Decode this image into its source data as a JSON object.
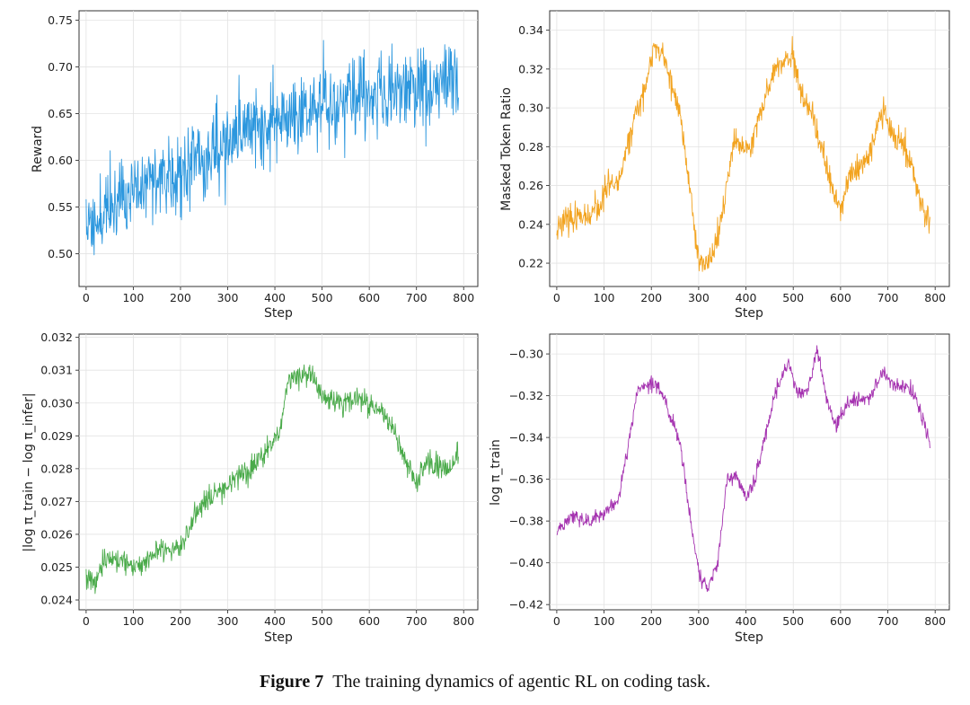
{
  "caption": {
    "label": "Figure 7",
    "text": "The training dynamics of agentic RL on coding task."
  },
  "chart_data": [
    {
      "type": "line",
      "color": "#2c97de",
      "xlabel": "Step",
      "ylabel": "Reward",
      "xlim": [
        -15,
        830
      ],
      "ylim": [
        0.465,
        0.76
      ],
      "xticks": [
        0,
        100,
        200,
        300,
        400,
        500,
        600,
        700,
        800
      ],
      "yticks": [
        0.5,
        0.55,
        0.6,
        0.65,
        0.7,
        0.75
      ],
      "ytick_labels": [
        "0.50",
        "0.55",
        "0.60",
        "0.65",
        "0.70",
        "0.75"
      ],
      "grid": true,
      "trend": [
        [
          0,
          0.53
        ],
        [
          50,
          0.55
        ],
        [
          100,
          0.565
        ],
        [
          150,
          0.58
        ],
        [
          200,
          0.59
        ],
        [
          250,
          0.605
        ],
        [
          300,
          0.62
        ],
        [
          350,
          0.635
        ],
        [
          400,
          0.645
        ],
        [
          450,
          0.655
        ],
        [
          500,
          0.66
        ],
        [
          550,
          0.665
        ],
        [
          600,
          0.67
        ],
        [
          650,
          0.675
        ],
        [
          700,
          0.68
        ],
        [
          750,
          0.685
        ],
        [
          790,
          0.69
        ]
      ],
      "n_points": 790,
      "noise": 0.022,
      "walk": 0,
      "smooth": 0,
      "min": 0.474,
      "max": 0.753,
      "seed": 11
    },
    {
      "type": "line",
      "color": "#f2a31f",
      "xlabel": "Step",
      "ylabel": "Masked Token Ratio",
      "xlim": [
        -15,
        830
      ],
      "ylim": [
        0.208,
        0.35
      ],
      "xticks": [
        0,
        100,
        200,
        300,
        400,
        500,
        600,
        700,
        800
      ],
      "yticks": [
        0.22,
        0.24,
        0.26,
        0.28,
        0.3,
        0.32,
        0.34
      ],
      "ytick_labels": [
        "0.22",
        "0.24",
        "0.26",
        "0.28",
        "0.30",
        "0.32",
        "0.34"
      ],
      "grid": true,
      "trend": [
        [
          0,
          0.238
        ],
        [
          30,
          0.243
        ],
        [
          60,
          0.244
        ],
        [
          90,
          0.248
        ],
        [
          110,
          0.262
        ],
        [
          130,
          0.259
        ],
        [
          150,
          0.283
        ],
        [
          170,
          0.298
        ],
        [
          195,
          0.318
        ],
        [
          205,
          0.333
        ],
        [
          230,
          0.324
        ],
        [
          260,
          0.297
        ],
        [
          280,
          0.262
        ],
        [
          300,
          0.222
        ],
        [
          320,
          0.218
        ],
        [
          345,
          0.238
        ],
        [
          360,
          0.262
        ],
        [
          375,
          0.281
        ],
        [
          410,
          0.28
        ],
        [
          430,
          0.297
        ],
        [
          460,
          0.32
        ],
        [
          480,
          0.323
        ],
        [
          500,
          0.326
        ],
        [
          520,
          0.303
        ],
        [
          540,
          0.296
        ],
        [
          560,
          0.278
        ],
        [
          580,
          0.26
        ],
        [
          600,
          0.248
        ],
        [
          615,
          0.262
        ],
        [
          640,
          0.27
        ],
        [
          665,
          0.278
        ],
        [
          690,
          0.301
        ],
        [
          710,
          0.285
        ],
        [
          730,
          0.283
        ],
        [
          750,
          0.27
        ],
        [
          770,
          0.25
        ],
        [
          790,
          0.24
        ]
      ],
      "n_points": 790,
      "noise": 0.0035,
      "walk": 0,
      "smooth": 0,
      "min": 0.212,
      "max": 0.342,
      "seed": 23
    },
    {
      "type": "line",
      "color": "#4aaa4a",
      "xlabel": "Step",
      "ylabel": "|log π_train − log π_infer|",
      "xlim": [
        -15,
        830
      ],
      "ylim": [
        0.0237,
        0.0321
      ],
      "xticks": [
        0,
        100,
        200,
        300,
        400,
        500,
        600,
        700,
        800
      ],
      "yticks": [
        0.024,
        0.025,
        0.026,
        0.027,
        0.028,
        0.029,
        0.03,
        0.031,
        0.032
      ],
      "ytick_labels": [
        "0.024",
        "0.025",
        "0.026",
        "0.027",
        "0.028",
        "0.029",
        "0.030",
        "0.031",
        "0.032"
      ],
      "grid": true,
      "trend": [
        [
          0,
          0.0246
        ],
        [
          20,
          0.0245
        ],
        [
          40,
          0.0253
        ],
        [
          80,
          0.0252
        ],
        [
          110,
          0.025
        ],
        [
          150,
          0.0255
        ],
        [
          200,
          0.0256
        ],
        [
          230,
          0.0266
        ],
        [
          260,
          0.0272
        ],
        [
          300,
          0.0275
        ],
        [
          340,
          0.0279
        ],
        [
          380,
          0.0285
        ],
        [
          410,
          0.0292
        ],
        [
          430,
          0.0308
        ],
        [
          450,
          0.0309
        ],
        [
          480,
          0.0308
        ],
        [
          500,
          0.0302
        ],
        [
          540,
          0.03
        ],
        [
          580,
          0.0301
        ],
        [
          620,
          0.0298
        ],
        [
          650,
          0.0292
        ],
        [
          670,
          0.0285
        ],
        [
          700,
          0.0275
        ],
        [
          720,
          0.0281
        ],
        [
          750,
          0.0281
        ],
        [
          770,
          0.028
        ],
        [
          790,
          0.0285
        ]
      ],
      "n_points": 790,
      "noise": 0.00018,
      "walk": 0,
      "smooth": 0,
      "min": 0.0241,
      "max": 0.0316,
      "seed": 37
    },
    {
      "type": "line",
      "color": "#a533b0",
      "xlabel": "Step",
      "ylabel": "log π_train",
      "xlim": [
        -15,
        830
      ],
      "ylim": [
        -0.4225,
        -0.2905
      ],
      "xticks": [
        0,
        100,
        200,
        300,
        400,
        500,
        600,
        700,
        800
      ],
      "yticks": [
        -0.42,
        -0.4,
        -0.38,
        -0.36,
        -0.34,
        -0.32,
        -0.3
      ],
      "ytick_labels": [
        "−0.42",
        "−0.40",
        "−0.38",
        "−0.36",
        "−0.34",
        "−0.32",
        "−0.30"
      ],
      "grid": true,
      "trend": [
        [
          0,
          -0.385
        ],
        [
          30,
          -0.378
        ],
        [
          60,
          -0.38
        ],
        [
          100,
          -0.377
        ],
        [
          130,
          -0.37
        ],
        [
          150,
          -0.345
        ],
        [
          170,
          -0.318
        ],
        [
          200,
          -0.314
        ],
        [
          220,
          -0.318
        ],
        [
          240,
          -0.33
        ],
        [
          260,
          -0.342
        ],
        [
          280,
          -0.375
        ],
        [
          300,
          -0.405
        ],
        [
          320,
          -0.413
        ],
        [
          340,
          -0.4
        ],
        [
          360,
          -0.36
        ],
        [
          380,
          -0.358
        ],
        [
          400,
          -0.37
        ],
        [
          420,
          -0.36
        ],
        [
          440,
          -0.34
        ],
        [
          460,
          -0.32
        ],
        [
          490,
          -0.303
        ],
        [
          510,
          -0.32
        ],
        [
          530,
          -0.318
        ],
        [
          550,
          -0.298
        ],
        [
          570,
          -0.32
        ],
        [
          590,
          -0.335
        ],
        [
          610,
          -0.325
        ],
        [
          640,
          -0.32
        ],
        [
          660,
          -0.322
        ],
        [
          690,
          -0.308
        ],
        [
          710,
          -0.315
        ],
        [
          740,
          -0.315
        ],
        [
          760,
          -0.322
        ],
        [
          780,
          -0.335
        ],
        [
          790,
          -0.344
        ]
      ],
      "n_points": 790,
      "noise": 0.0018,
      "walk": 0,
      "smooth": 0,
      "min": -0.416,
      "max": -0.296,
      "seed": 51
    }
  ]
}
